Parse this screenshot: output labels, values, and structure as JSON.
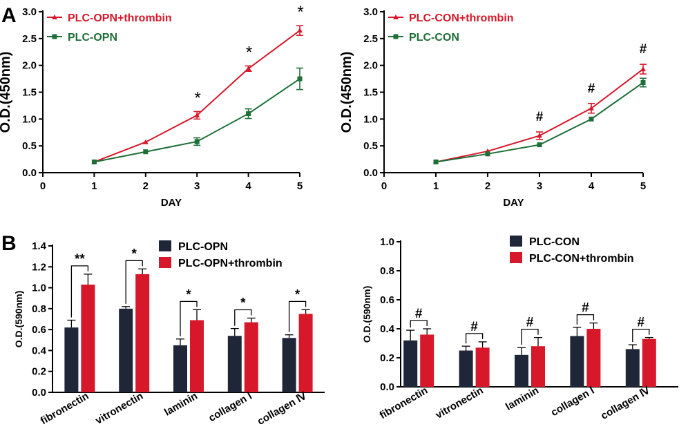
{
  "panels": {
    "A": "A",
    "B": "B"
  },
  "colors": {
    "red": "#d7182a",
    "green": "#1e6e37",
    "navy": "#1f2638",
    "black": "#000000"
  },
  "chart_data": [
    {
      "id": "a1",
      "type": "line",
      "xlabel": "DAY",
      "ylabel": "O.D.(450nm)",
      "xlim": [
        0,
        5
      ],
      "ylim": [
        0,
        3.0
      ],
      "xticks": [
        "0",
        "1",
        "2",
        "3",
        "4",
        "5"
      ],
      "yticks": [
        "0.0",
        "0.5",
        "1.0",
        "1.5",
        "2.0",
        "2.5",
        "3.0"
      ],
      "x": [
        1,
        2,
        3,
        4,
        5
      ],
      "legend_placement": "top-left",
      "series": [
        {
          "name": "PLC-OPN+thrombin",
          "color": "#d7182a",
          "marker": "triangle",
          "values": [
            0.2,
            0.57,
            1.07,
            1.94,
            2.65
          ],
          "errors": [
            0.0,
            0.0,
            0.07,
            0.05,
            0.09
          ]
        },
        {
          "name": "PLC-OPN",
          "color": "#1e6e37",
          "marker": "square",
          "values": [
            0.2,
            0.39,
            0.58,
            1.1,
            1.75
          ],
          "errors": [
            0.0,
            0.0,
            0.07,
            0.09,
            0.2
          ]
        }
      ],
      "annotations": [
        {
          "x": 3,
          "text": "*"
        },
        {
          "x": 4,
          "text": "*"
        },
        {
          "x": 5,
          "text": "*"
        }
      ]
    },
    {
      "id": "a2",
      "type": "line",
      "xlabel": "DAY",
      "ylabel": "O.D.(450nm)",
      "xlim": [
        0,
        5
      ],
      "ylim": [
        0,
        3.0
      ],
      "xticks": [
        "0",
        "1",
        "2",
        "3",
        "4",
        "5"
      ],
      "yticks": [
        "0.0",
        "0.5",
        "1.0",
        "1.5",
        "2.0",
        "2.5",
        "3.0"
      ],
      "x": [
        1,
        2,
        3,
        4,
        5
      ],
      "legend_placement": "top-left",
      "series": [
        {
          "name": "PLC-CON+thrombin",
          "color": "#d7182a",
          "marker": "triangle",
          "values": [
            0.2,
            0.4,
            0.69,
            1.2,
            1.93
          ],
          "errors": [
            0.0,
            0.0,
            0.07,
            0.09,
            0.09
          ]
        },
        {
          "name": "PLC-CON",
          "color": "#1e6e37",
          "marker": "square",
          "values": [
            0.2,
            0.35,
            0.52,
            1.0,
            1.68
          ],
          "errors": [
            0.0,
            0.0,
            0.0,
            0.0,
            0.08
          ]
        }
      ],
      "annotations": [
        {
          "x": 3,
          "text": "#"
        },
        {
          "x": 4,
          "text": "#"
        },
        {
          "x": 5,
          "text": "#"
        }
      ]
    },
    {
      "id": "b1",
      "type": "bar",
      "ylabel": "O.D.(590nm)",
      "ylim": [
        0,
        1.4
      ],
      "yticks": [
        "0.0",
        "0.2",
        "0.4",
        "0.6",
        "0.8",
        "1.0",
        "1.2",
        "1.4"
      ],
      "categories": [
        "fibronectin",
        "vitronectin",
        "laminin",
        "collagen Ⅰ",
        "collagen Ⅳ"
      ],
      "legend_placement": "top-center",
      "series": [
        {
          "name": "PLC-OPN",
          "color": "#1f2638",
          "values": [
            0.62,
            0.8,
            0.45,
            0.54,
            0.52
          ],
          "errors": [
            0.07,
            0.02,
            0.06,
            0.07,
            0.03
          ]
        },
        {
          "name": "PLC-OPN+thrombin",
          "color": "#d7182a",
          "values": [
            1.03,
            1.13,
            0.69,
            0.67,
            0.75
          ],
          "errors": [
            0.1,
            0.05,
            0.1,
            0.04,
            0.04
          ]
        }
      ],
      "annotations": [
        "**",
        "*",
        "*",
        "*",
        "*"
      ]
    },
    {
      "id": "b2",
      "type": "bar",
      "ylabel": "O.D.(590nm)",
      "ylim": [
        0,
        1.0
      ],
      "yticks": [
        "0.0",
        "0.2",
        "0.4",
        "0.6",
        "0.8",
        "1.0"
      ],
      "categories": [
        "fibronectin",
        "vitronectin",
        "laminin",
        "collagen Ⅰ",
        "collagen Ⅳ"
      ],
      "legend_placement": "top-center",
      "series": [
        {
          "name": "PLC-CON",
          "color": "#1f2638",
          "values": [
            0.32,
            0.25,
            0.22,
            0.35,
            0.26
          ],
          "errors": [
            0.07,
            0.03,
            0.05,
            0.06,
            0.03
          ]
        },
        {
          "name": "PLC-CON+thrombin",
          "color": "#d7182a",
          "values": [
            0.36,
            0.27,
            0.28,
            0.4,
            0.33
          ],
          "errors": [
            0.04,
            0.04,
            0.06,
            0.04,
            0.01
          ]
        }
      ],
      "annotations": [
        "#",
        "#",
        "#",
        "#",
        "#"
      ]
    }
  ]
}
